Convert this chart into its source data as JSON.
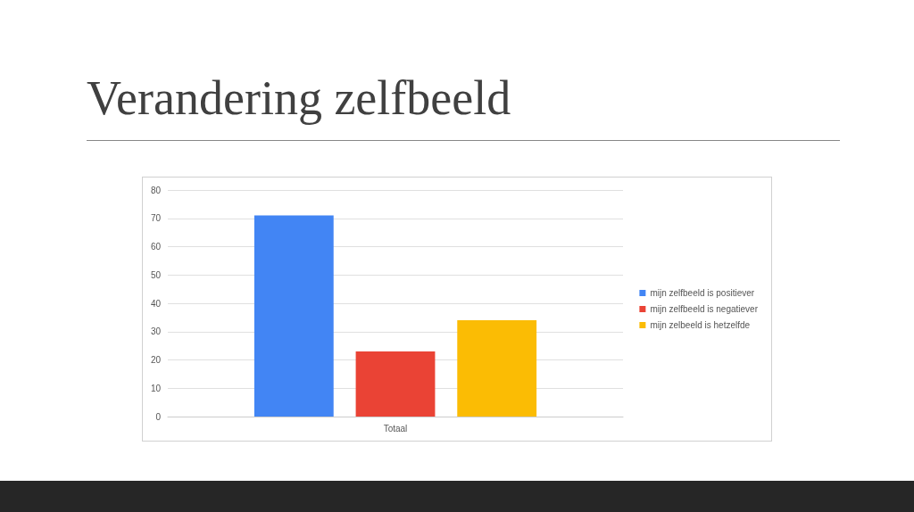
{
  "chart_data": {
    "type": "bar",
    "title": "Verandering zelfbeeld",
    "categories": [
      "Totaal"
    ],
    "series": [
      {
        "name": "mijn zelfbeeld is positiever",
        "color": "#4285f4",
        "values": [
          71
        ]
      },
      {
        "name": "mijn zelfbeeld is negatiever",
        "color": "#ea4335",
        "values": [
          23
        ]
      },
      {
        "name": "mijn zelbeeld is hetzelfde",
        "color": "#fbbc04",
        "values": [
          34
        ]
      }
    ],
    "ylim": [
      0,
      80
    ],
    "yticks": [
      0,
      10,
      20,
      30,
      40,
      50,
      60,
      70,
      80
    ],
    "grid": "y",
    "legend": "right"
  }
}
